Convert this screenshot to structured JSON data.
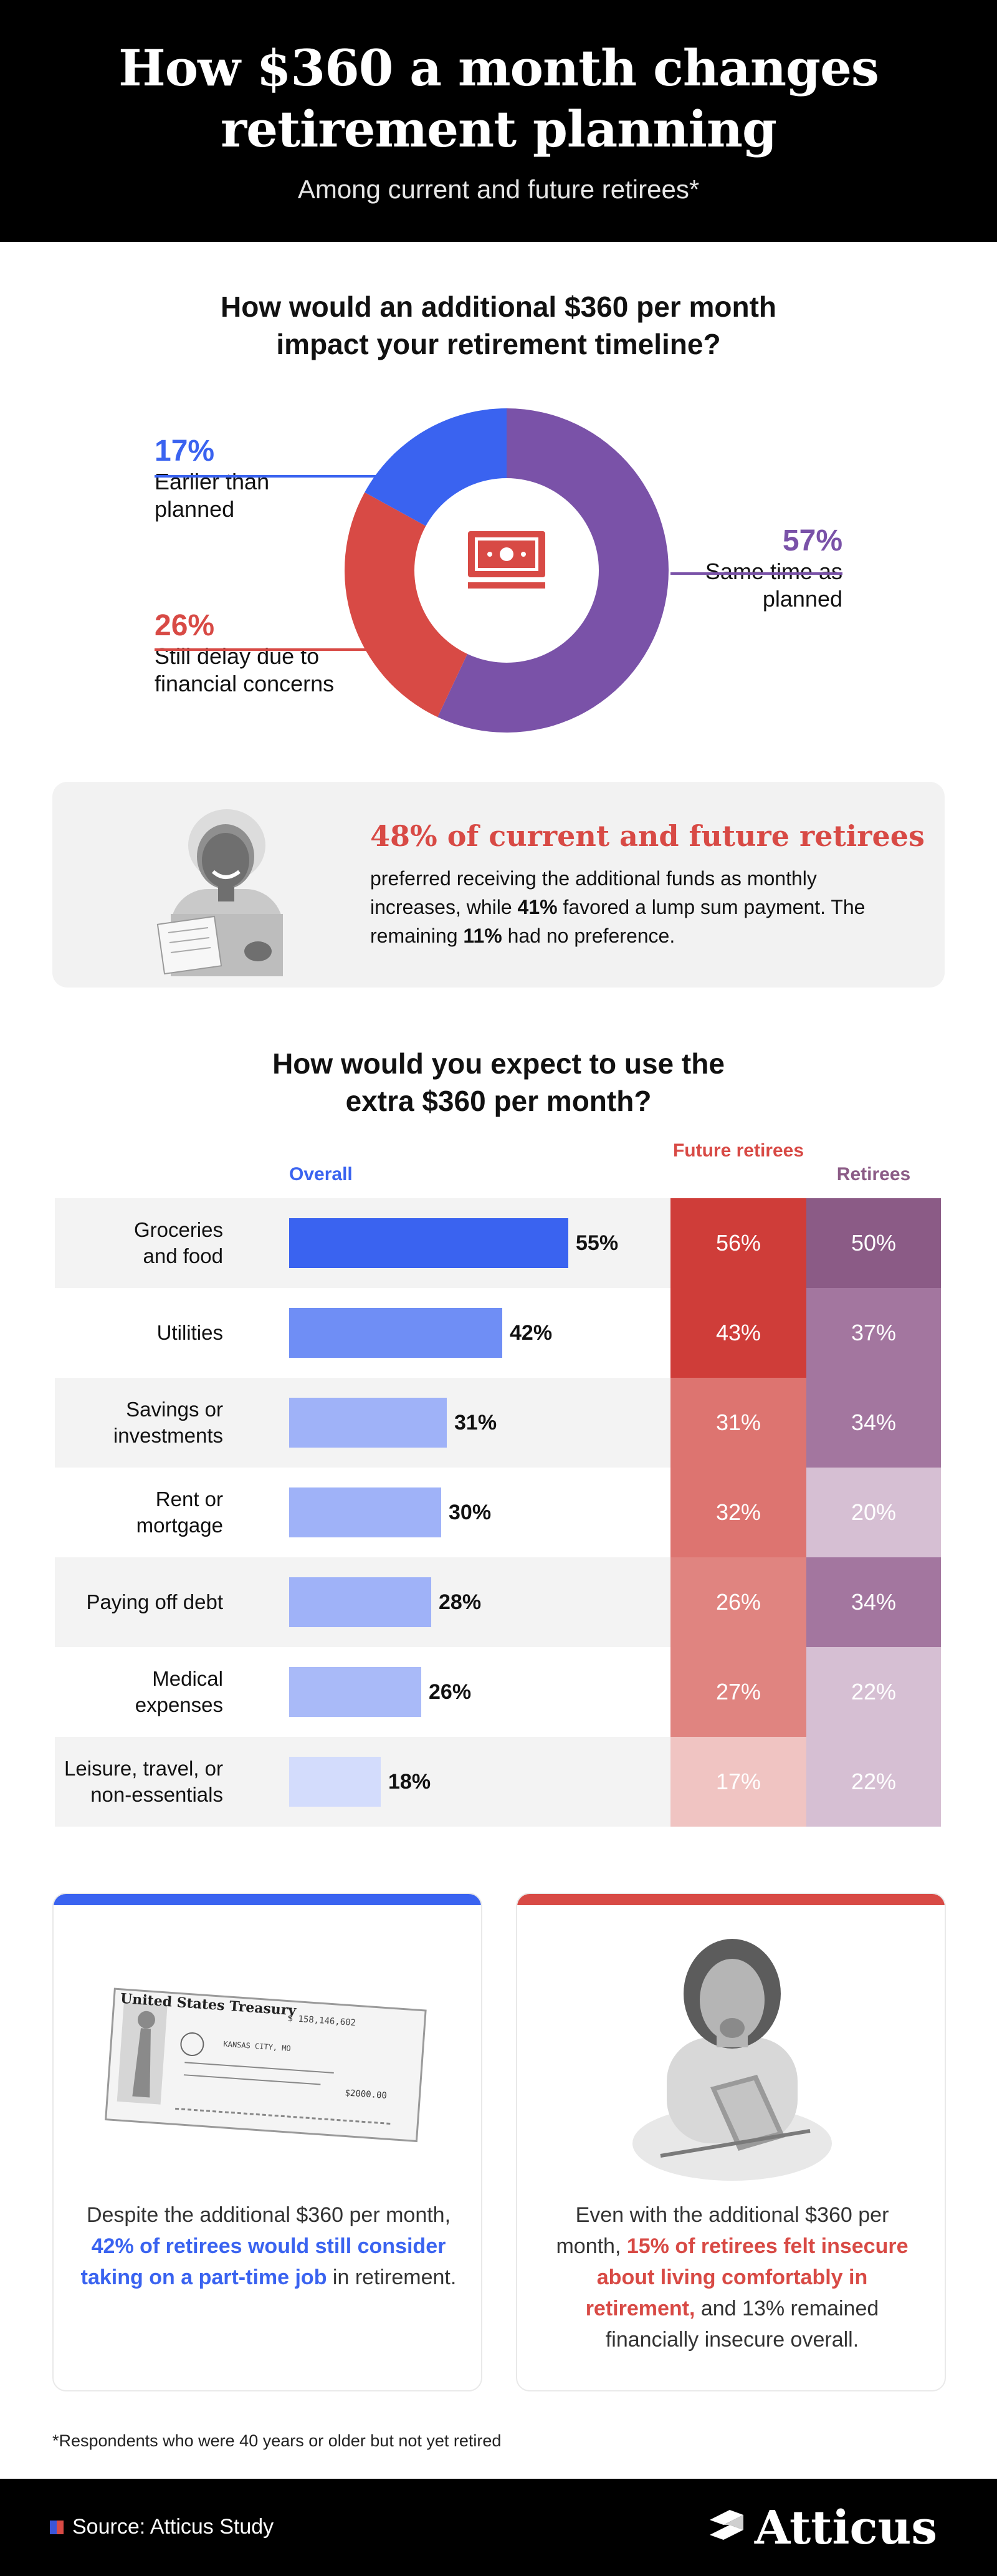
{
  "header": {
    "title_line1": "How $360 a month changes",
    "title_line2": "retirement planning",
    "subtitle": "Among current and future retirees*"
  },
  "timeline": {
    "question_line1": "How would an additional $360 per month",
    "question_line2": "impact your retirement timeline?",
    "slices": [
      {
        "pct": "57%",
        "label_line1": "Same time as",
        "label_line2": "planned",
        "color": "#7a52a8"
      },
      {
        "pct": "26%",
        "label_line1": "Still delay due to",
        "label_line2": "financial concerns",
        "color": "#d84a45"
      },
      {
        "pct": "17%",
        "label_line1": "Earlier than",
        "label_line2": "planned",
        "color": "#3a63f0"
      }
    ]
  },
  "stat": {
    "headline": "48% of current and future retirees",
    "body_1": "preferred receiving the additional funds as monthly increases, while ",
    "body_bold_1": "41%",
    "body_2": " favored a lump sum payment. The remaining ",
    "body_bold_2": "11%",
    "body_3": " had no preference."
  },
  "uses": {
    "question_line1": "How would you expect to use the",
    "question_line2": "extra $360 per month?",
    "col_overall": "Overall",
    "col_future": "Future retirees",
    "col_retirees": "Retirees"
  },
  "chart_data": {
    "type": "bar",
    "title": "How would you expect to use the extra $360 per month?",
    "categories": [
      "Groceries and food",
      "Utilities",
      "Savings or investments",
      "Rent or mortgage",
      "Paying off debt",
      "Medical expenses",
      "Leisure, travel, or non-essentials"
    ],
    "category_lines": [
      [
        "Groceries",
        "and food"
      ],
      [
        "Utilities"
      ],
      [
        "Savings or",
        "investments"
      ],
      [
        "Rent or",
        "mortgage"
      ],
      [
        "Paying off debt"
      ],
      [
        "Medical",
        "expenses"
      ],
      [
        "Leisure, travel, or",
        "non-essentials"
      ]
    ],
    "series": [
      {
        "name": "Overall",
        "values": [
          55,
          42,
          31,
          30,
          28,
          26,
          18
        ]
      },
      {
        "name": "Future retirees",
        "values": [
          56,
          43,
          31,
          32,
          26,
          27,
          17
        ]
      },
      {
        "name": "Retirees",
        "values": [
          50,
          37,
          34,
          20,
          34,
          22,
          22
        ]
      }
    ],
    "value_suffix": "%",
    "colors": {
      "overall": [
        "#3a63f0",
        "#6f8ef5",
        "#9fb2f8",
        "#9fb2f8",
        "#9fb2f8",
        "#a9baf8",
        "#d3dcfc"
      ],
      "future": [
        "#cf3d39",
        "#cf3d39",
        "#dd7470",
        "#dd7470",
        "#e08480",
        "#e08480",
        "#f0c4c2"
      ],
      "retirees": [
        "#8b5b86",
        "#a3769f",
        "#a3769f",
        "#d6bfd3",
        "#a3769f",
        "#d6bfd3",
        "#d6bfd3"
      ]
    }
  },
  "cards": [
    {
      "accent": "#3a63f0",
      "text_1": "Despite the additional $360 per month, ",
      "highlight": "42% of retirees would still consider taking on a part-time job",
      "text_2": " in retirement."
    },
    {
      "accent": "#d84a45",
      "text_1": "Even with the additional $360 per month, ",
      "highlight": "15% of retirees felt insecure about living comfortably in retirement,",
      "text_2": " and 13% remained financially insecure overall."
    }
  ],
  "check": {
    "treasury": "United States Treasury",
    "amount_top": "$ 158,146,602",
    "city": "KANSAS CITY, MO",
    "amount": "$2000.00"
  },
  "footnote": "*Respondents who were 40 years or older but not yet retired",
  "footer": {
    "source": "Source: Atticus Study",
    "brand": "Atticus"
  }
}
